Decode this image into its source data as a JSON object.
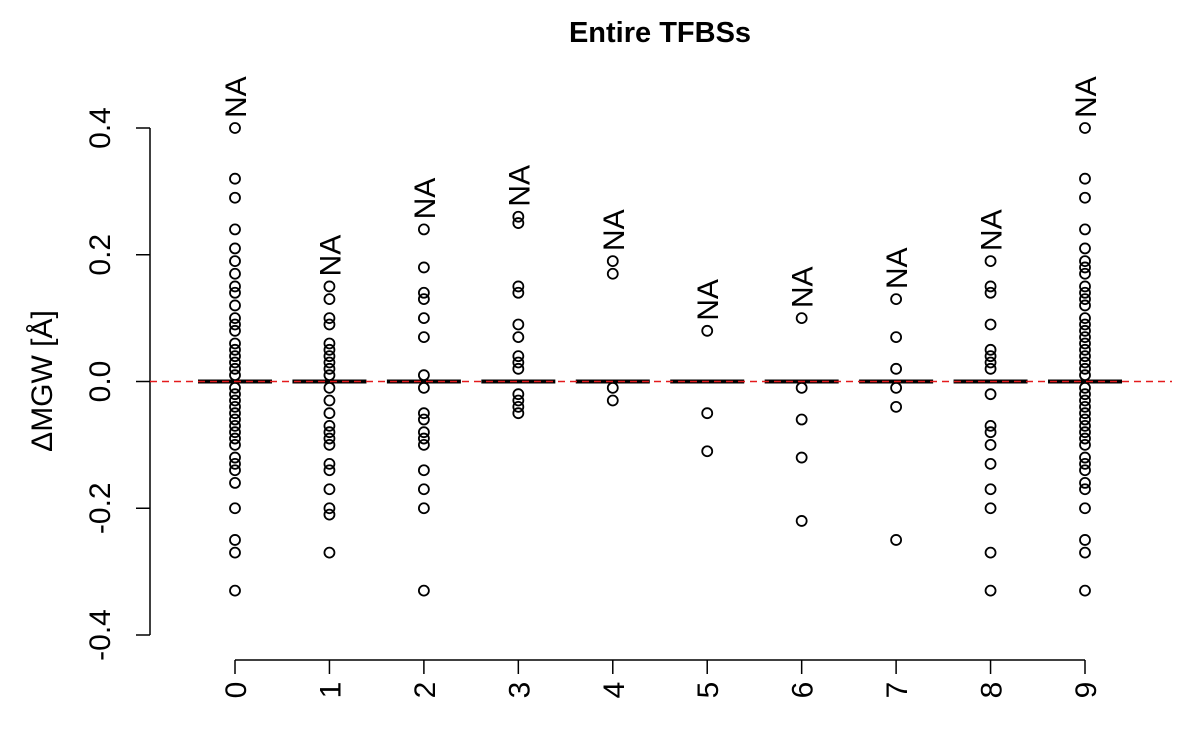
{
  "chart_data": {
    "type": "box",
    "title": "Entire TFBSs",
    "ylabel": "ΔMGW [Å]",
    "categories": [
      "0",
      "1",
      "2",
      "3",
      "4",
      "5",
      "6",
      "7",
      "8",
      "9"
    ],
    "medians": [
      0,
      0,
      0,
      0,
      0,
      0,
      0,
      0,
      0,
      0
    ],
    "outliers": [
      [
        0.4,
        0.32,
        0.29,
        0.24,
        0.21,
        0.19,
        0.17,
        0.15,
        0.14,
        0.12,
        0.1,
        0.09,
        0.08,
        0.06,
        0.05,
        0.04,
        0.03,
        0.02,
        0.01,
        -0.01,
        -0.02,
        -0.03,
        -0.04,
        -0.05,
        -0.06,
        -0.07,
        -0.08,
        -0.09,
        -0.1,
        -0.12,
        -0.13,
        -0.14,
        -0.16,
        -0.2,
        -0.25,
        -0.27,
        -0.33
      ],
      [
        0.15,
        0.13,
        0.1,
        0.09,
        0.06,
        0.05,
        0.04,
        0.03,
        0.02,
        0.01,
        -0.01,
        -0.03,
        -0.05,
        -0.07,
        -0.08,
        -0.09,
        -0.1,
        -0.13,
        -0.14,
        -0.17,
        -0.2,
        -0.21,
        -0.27
      ],
      [
        0.24,
        0.18,
        0.14,
        0.13,
        0.1,
        0.07,
        0.01,
        -0.01,
        -0.05,
        -0.06,
        -0.08,
        -0.09,
        -0.1,
        -0.14,
        -0.17,
        -0.2,
        -0.33
      ],
      [
        0.26,
        0.25,
        0.15,
        0.14,
        0.09,
        0.07,
        0.04,
        0.03,
        0.02,
        -0.02,
        -0.03,
        -0.04,
        -0.05
      ],
      [
        0.19,
        0.17,
        -0.01,
        -0.03
      ],
      [
        0.08,
        -0.05,
        -0.11
      ],
      [
        0.1,
        -0.01,
        -0.06,
        -0.12,
        -0.22
      ],
      [
        0.13,
        0.07,
        0.02,
        -0.01,
        -0.04,
        -0.25
      ],
      [
        0.19,
        0.15,
        0.14,
        0.09,
        0.05,
        0.04,
        0.03,
        0.02,
        -0.02,
        -0.07,
        -0.08,
        -0.1,
        -0.13,
        -0.17,
        -0.2,
        -0.27,
        -0.33
      ],
      [
        0.4,
        0.32,
        0.29,
        0.24,
        0.21,
        0.19,
        0.18,
        0.17,
        0.15,
        0.14,
        0.13,
        0.12,
        0.1,
        0.09,
        0.08,
        0.07,
        0.06,
        0.05,
        0.04,
        0.03,
        0.02,
        0.01,
        -0.01,
        -0.02,
        -0.03,
        -0.04,
        -0.05,
        -0.06,
        -0.07,
        -0.08,
        -0.09,
        -0.1,
        -0.12,
        -0.13,
        -0.14,
        -0.16,
        -0.17,
        -0.2,
        -0.25,
        -0.27,
        -0.33
      ]
    ],
    "annotations": [
      "NA",
      "NA",
      "NA",
      "NA",
      "NA",
      "NA",
      "NA",
      "NA",
      "NA",
      "NA"
    ],
    "reference_line": {
      "value": 0,
      "color": "#e41a1c"
    },
    "ylim": [
      -0.4,
      0.4
    ],
    "yticks": [
      -0.4,
      -0.2,
      {
        "value": 0,
        "label": "0.0"
      },
      0.2,
      0.4
    ]
  }
}
